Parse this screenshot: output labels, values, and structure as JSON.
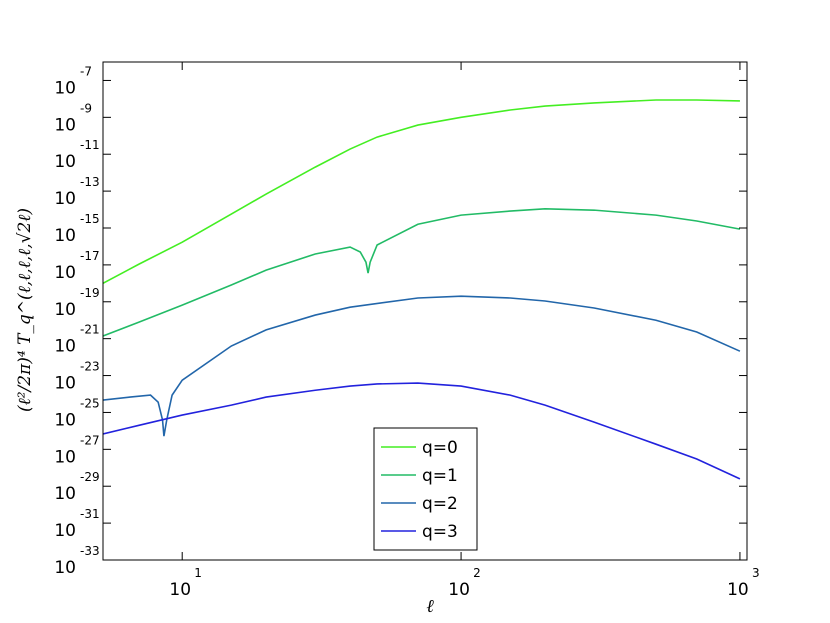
{
  "chart_data": {
    "type": "line",
    "xlabel": "ℓ",
    "ylabel": "(ℓ²/2π)⁴ T_q^(ℓ,ℓ,ℓ,ℓ,√2ℓ)",
    "log_x": true,
    "log_y": true,
    "legend": "lower center",
    "xlim": [
      5.2,
      1060
    ],
    "ylim": [
      1e-33,
      1e-06
    ],
    "xticks": [
      {
        "value": 10,
        "label": "10",
        "exponent": "1"
      },
      {
        "value": 100,
        "label": "10",
        "exponent": "2"
      },
      {
        "value": 1000,
        "label": "10",
        "exponent": "3"
      }
    ],
    "yticks": [
      {
        "value": 1e-07,
        "label": "10",
        "exponent": "-7"
      },
      {
        "value": 1e-09,
        "label": "10",
        "exponent": "-9"
      },
      {
        "value": 1e-11,
        "label": "10",
        "exponent": "-11"
      },
      {
        "value": 1e-13,
        "label": "10",
        "exponent": "-13"
      },
      {
        "value": 1e-15,
        "label": "10",
        "exponent": "-15"
      },
      {
        "value": 1e-17,
        "label": "10",
        "exponent": "-17"
      },
      {
        "value": 1e-19,
        "label": "10",
        "exponent": "-19"
      },
      {
        "value": 1e-21,
        "label": "10",
        "exponent": "-21"
      },
      {
        "value": 1e-23,
        "label": "10",
        "exponent": "-23"
      },
      {
        "value": 1e-25,
        "label": "10",
        "exponent": "-25"
      },
      {
        "value": 1e-27,
        "label": "10",
        "exponent": "-27"
      },
      {
        "value": 1e-29,
        "label": "10",
        "exponent": "-29"
      },
      {
        "value": 1e-31,
        "label": "10",
        "exponent": "-31"
      },
      {
        "value": 1e-33,
        "label": "10",
        "exponent": "-33"
      }
    ],
    "series": [
      {
        "name": "q=0",
        "color": "#44ee22",
        "x": [
          5.2,
          7,
          10,
          15,
          20,
          30,
          40,
          50,
          70,
          100,
          150,
          200,
          300,
          500,
          700,
          1000
        ],
        "values": [
          1e-18,
          1.1e-17,
          1.7e-16,
          5.7e-15,
          6.9e-14,
          2e-12,
          1.9e-11,
          8.5e-11,
          3.8e-10,
          1e-09,
          2.5e-09,
          4.1e-09,
          6e-09,
          8.7e-09,
          8.7e-09,
          7.7e-09
        ]
      },
      {
        "name": "q=1",
        "color": "#22bb66",
        "x": [
          5.2,
          7,
          10,
          15,
          20,
          30,
          40,
          43.5,
          45.6,
          46.4,
          47.2,
          50,
          70,
          100,
          150,
          200,
          300,
          500,
          700,
          1000
        ],
        "values": [
          1.4e-21,
          7.9e-21,
          6.6e-20,
          8.1e-19,
          5.2e-18,
          3.9e-17,
          9.3e-17,
          5e-17,
          1.4e-17,
          3.6e-18,
          1.4e-17,
          1.2e-16,
          1.6e-15,
          5e-15,
          8.3e-15,
          1.1e-14,
          9.3e-15,
          5e-15,
          2.4e-15,
          8.7e-16
        ]
      },
      {
        "name": "q=2",
        "color": "#2266aa",
        "x": [
          5.2,
          6.5,
          7.7,
          8.2,
          8.5,
          8.6,
          8.8,
          9.2,
          10,
          15,
          20,
          30,
          40,
          70,
          100,
          150,
          200,
          300,
          500,
          700,
          1000
        ],
        "values": [
          4.7e-25,
          6.8e-25,
          8.7e-25,
          3.6e-25,
          3.9e-26,
          5.2e-27,
          3.9e-26,
          8.7e-25,
          5.6e-24,
          4e-22,
          3e-21,
          1.9e-20,
          5.1e-20,
          1.6e-19,
          2e-19,
          1.6e-19,
          1.1e-19,
          4.6e-20,
          1e-20,
          2.3e-21,
          2.1e-22
        ]
      },
      {
        "name": "q=3",
        "color": "#2222dd",
        "x": [
          5.2,
          7,
          10,
          15,
          20,
          30,
          40,
          50,
          70,
          100,
          150,
          200,
          300,
          500,
          700,
          1000
        ],
        "values": [
          6.8e-27,
          2e-26,
          7.2e-26,
          2.5e-25,
          6.8e-25,
          1.6e-24,
          2.7e-24,
          3.5e-24,
          3.9e-24,
          2.7e-24,
          8.7e-25,
          2.5e-25,
          3e-26,
          1.9e-27,
          3e-28,
          2.5e-29
        ]
      }
    ]
  }
}
